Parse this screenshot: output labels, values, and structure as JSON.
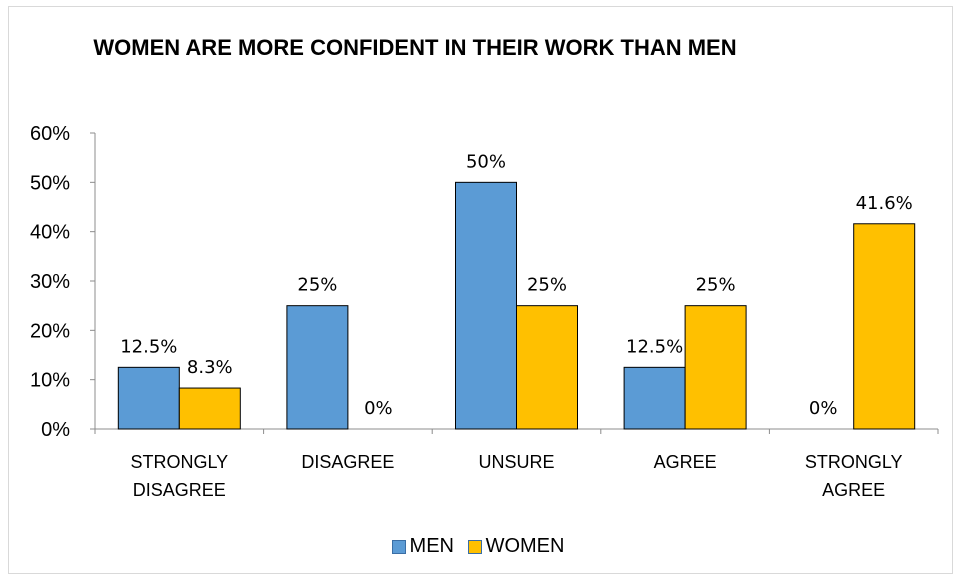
{
  "chart_data": {
    "type": "bar",
    "title": "WOMEN ARE MORE CONFIDENT IN THEIR WORK THAN MEN",
    "categories": [
      "STRONGLY DISAGREE",
      "DISAGREE",
      "UNSURE",
      "AGREE",
      "STRONGLY AGREE"
    ],
    "category_lines": [
      [
        "STRONGLY",
        "DISAGREE"
      ],
      [
        "DISAGREE"
      ],
      [
        "UNSURE"
      ],
      [
        "AGREE"
      ],
      [
        "STRONGLY",
        "AGREE"
      ]
    ],
    "series": [
      {
        "name": "MEN",
        "color": "#5b9bd5",
        "values": [
          12.5,
          25,
          50,
          12.5,
          0
        ],
        "labels": [
          "12.5%",
          "25%",
          "50%",
          "12.5%",
          "0%"
        ]
      },
      {
        "name": "WOMEN",
        "color": "#ffc000",
        "values": [
          8.3,
          0,
          25,
          25,
          41.6
        ],
        "labels": [
          "8.3%",
          "0%",
          "25%",
          "25%",
          "41.6%"
        ]
      }
    ],
    "yticks": [
      "0%",
      "10%",
      "20%",
      "30%",
      "40%",
      "50%",
      "60%"
    ],
    "ylim": [
      0,
      60
    ],
    "grid": false,
    "legend_position": "bottom"
  }
}
